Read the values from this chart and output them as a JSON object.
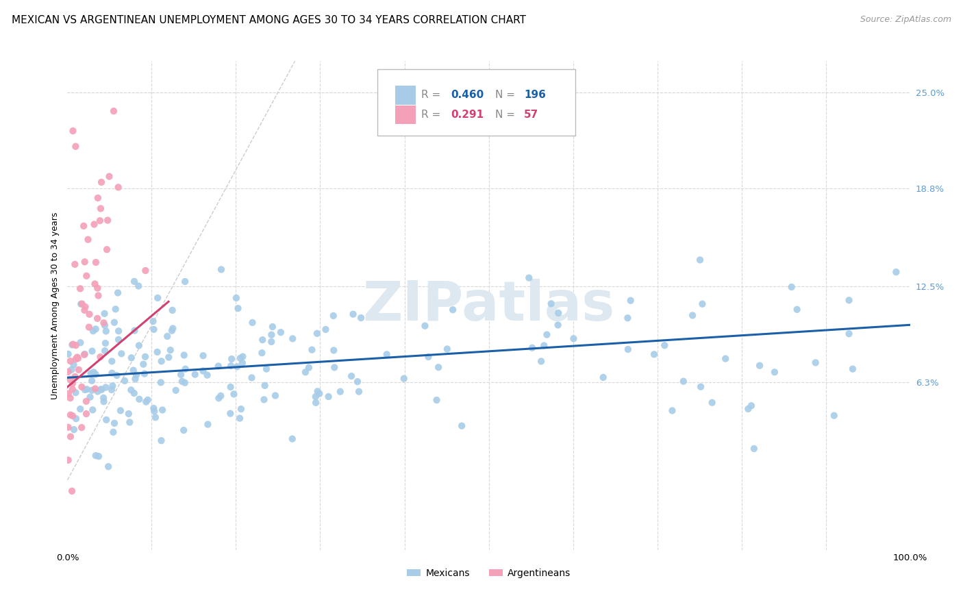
{
  "title": "MEXICAN VS ARGENTINEAN UNEMPLOYMENT AMONG AGES 30 TO 34 YEARS CORRELATION CHART",
  "source": "Source: ZipAtlas.com",
  "ylabel": "Unemployment Among Ages 30 to 34 years",
  "xlim": [
    0.0,
    1.0
  ],
  "ylim": [
    -0.045,
    0.27
  ],
  "yticks": [
    0.063,
    0.125,
    0.188,
    0.25
  ],
  "yticklabels": [
    "6.3%",
    "12.5%",
    "18.8%",
    "25.0%"
  ],
  "xticks": [
    0.0,
    0.1,
    0.2,
    0.3,
    0.4,
    0.5,
    0.6,
    0.7,
    0.8,
    0.9,
    1.0
  ],
  "xticklabels": [
    "0.0%",
    "",
    "",
    "",
    "",
    "",
    "",
    "",
    "",
    "",
    "100.0%"
  ],
  "mexican_color": "#a8cce8",
  "argentinean_color": "#f4a0b8",
  "mexican_trend_color": "#1a5fa8",
  "argentinean_trend_color": "#d04070",
  "watermark": "ZIPatlas",
  "watermark_color": "#dde8f0",
  "background_color": "#ffffff",
  "grid_color": "#d8d8d8",
  "legend_box_color": "#eeeeee",
  "legend_border_color": "#cccccc",
  "mexican_n": 196,
  "argentinean_n": 57,
  "title_fontsize": 11,
  "source_fontsize": 9,
  "label_fontsize": 9,
  "tick_fontsize": 9.5,
  "legend_fontsize": 11
}
